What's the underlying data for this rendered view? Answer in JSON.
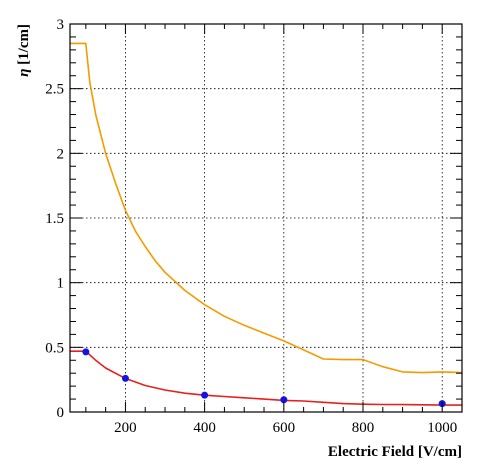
{
  "chart_data": {
    "type": "line",
    "xlabel": "Electric Field [V/cm]",
    "ylabel_symbol": "η",
    "ylabel_unit": " [1/cm]",
    "xlim": [
      60,
      1050
    ],
    "ylim": [
      0,
      3
    ],
    "x_ticks": [
      200,
      400,
      600,
      800,
      1000
    ],
    "x_tick_labels": [
      "200",
      "400",
      "600",
      "800",
      "1000"
    ],
    "y_ticks": [
      0,
      0.5,
      1,
      1.5,
      2,
      2.5,
      3
    ],
    "y_tick_labels": [
      "0",
      "0.5",
      "1",
      "1.5",
      "2",
      "2.5",
      "3"
    ],
    "grid": true,
    "series": [
      {
        "color": "#f59a00",
        "style": "line",
        "x": [
          60,
          100,
          110,
          125,
          150,
          175,
          200,
          225,
          250,
          275,
          300,
          350,
          400,
          450,
          500,
          550,
          600,
          650,
          700,
          750,
          800,
          850,
          900,
          950,
          1000,
          1050
        ],
        "y": [
          2.85,
          2.85,
          2.55,
          2.3,
          2.0,
          1.77,
          1.56,
          1.4,
          1.28,
          1.17,
          1.08,
          0.94,
          0.83,
          0.74,
          0.67,
          0.61,
          0.55,
          0.48,
          0.41,
          0.405,
          0.405,
          0.35,
          0.31,
          0.305,
          0.31,
          0.305
        ]
      },
      {
        "color": "#e8201c",
        "style": "line",
        "x": [
          60,
          100,
          125,
          150,
          200,
          250,
          300,
          350,
          400,
          450,
          500,
          550,
          600,
          650,
          700,
          750,
          800,
          850,
          900,
          950,
          1000,
          1050
        ],
        "y": [
          0.47,
          0.47,
          0.4,
          0.34,
          0.26,
          0.205,
          0.17,
          0.145,
          0.13,
          0.12,
          0.11,
          0.1,
          0.09,
          0.085,
          0.075,
          0.065,
          0.06,
          0.058,
          0.057,
          0.056,
          0.053,
          0.053
        ]
      },
      {
        "color": "#1313e6",
        "style": "markers",
        "x": [
          100,
          200,
          400,
          600,
          1000
        ],
        "y": [
          0.465,
          0.26,
          0.13,
          0.095,
          0.065
        ]
      }
    ]
  }
}
